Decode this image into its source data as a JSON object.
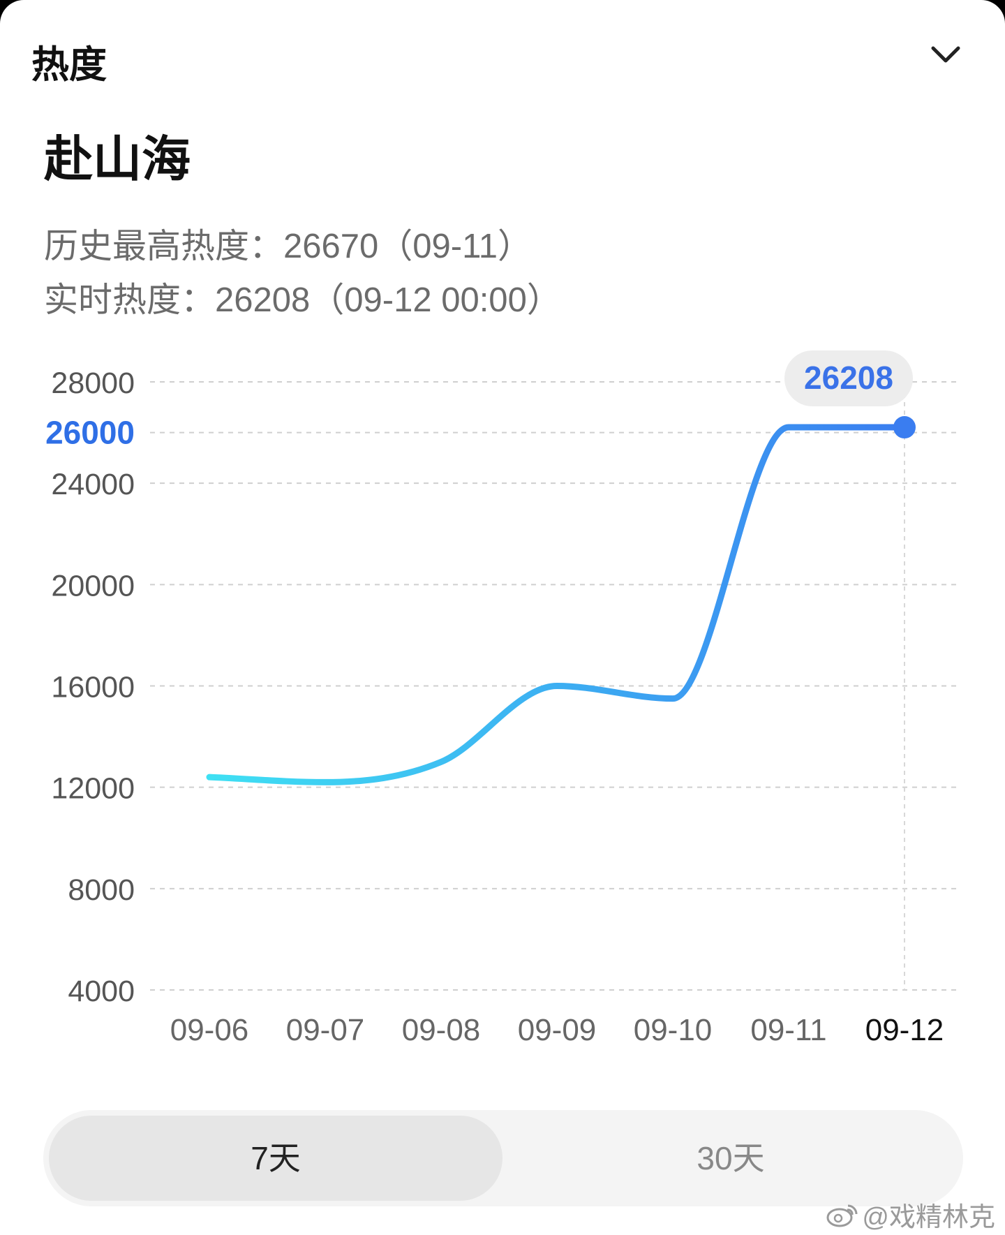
{
  "header": {
    "section_title": "热度",
    "collapse_icon": "chevron-down-icon"
  },
  "item": {
    "title": "赴山海",
    "history_max_text": "历史最高热度：26670（09-11）",
    "realtime_text": "实时热度：26208（09-12 00:00）"
  },
  "chart_data": {
    "type": "line",
    "x": [
      "09-06",
      "09-07",
      "09-08",
      "09-09",
      "09-10",
      "09-11",
      "09-12"
    ],
    "series": [
      {
        "values": [
          12400,
          12200,
          13000,
          16000,
          15500,
          26208,
          26208
        ]
      }
    ],
    "y_ticks": [
      4000,
      8000,
      12000,
      16000,
      20000,
      24000,
      26000,
      28000
    ],
    "highlighted_tick": 26000,
    "ylim": [
      4000,
      28000
    ],
    "grid": true,
    "tooltip": {
      "x": "09-12",
      "value": "26208"
    },
    "colors": {
      "line_start": "#3fe0f3",
      "line_end": "#3a7df0",
      "tooltip_text": "#3a72e8",
      "highlight_tick": "#2f6fe6",
      "grid": "#cfcfcf"
    }
  },
  "range_toggle": {
    "options": [
      "7天",
      "30天"
    ],
    "selected": "7天"
  },
  "watermark": {
    "text": "@戏精林克",
    "icon": "weibo-icon"
  }
}
